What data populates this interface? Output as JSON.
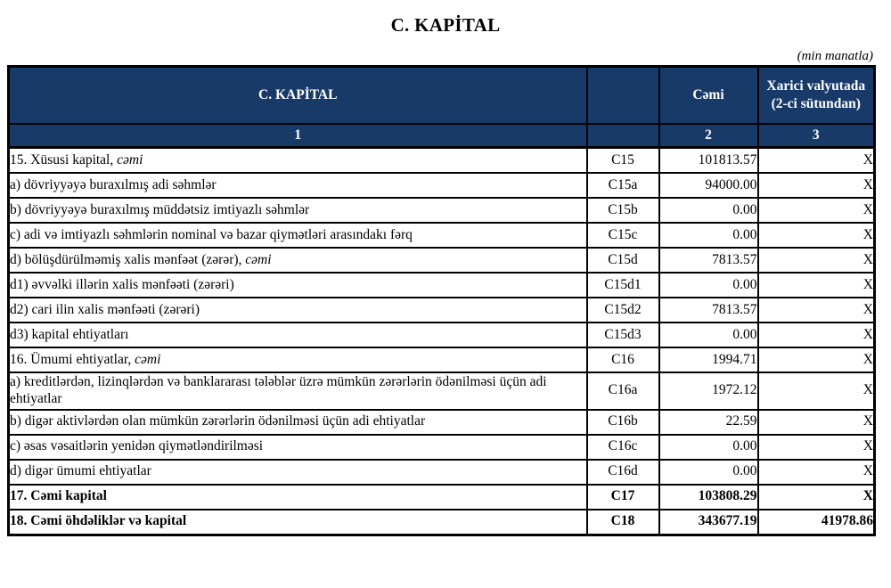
{
  "page": {
    "title": "C. KAPİTAL",
    "unit_note": "(min manatla)"
  },
  "table": {
    "header": {
      "name_col": "C. KAPİTAL",
      "code_col": "",
      "total_col": "Cəmi",
      "foreign_col": "Xarici valyutada (2-ci sütundan)"
    },
    "subheader": [
      "1",
      "",
      "2",
      "3"
    ],
    "rows": [
      {
        "label": "15. Xüsusi kapital, ",
        "label_italic": "cəmi",
        "code": "C15",
        "total": "101813.57",
        "foreign": "X",
        "bold": false,
        "raised": false
      },
      {
        "label": "a) dövriyyəyə buraxılmış adi səhmlər",
        "label_italic": "",
        "code": "C15a",
        "total": "94000.00",
        "foreign": "X",
        "bold": false,
        "raised": true
      },
      {
        "label": "b) dövriyyəyə buraxılmış müddətsiz imtiyazlı səhmlər",
        "label_italic": "",
        "code": "C15b",
        "total": "0.00",
        "foreign": "X",
        "bold": false,
        "raised": false
      },
      {
        "label": "c) adi və imtiyazlı səhmlərin nominal və bazar qiymətləri arasındakı fərq",
        "label_italic": "",
        "code": "C15c",
        "total": "0.00",
        "foreign": "X",
        "bold": false,
        "raised": false
      },
      {
        "label": "d) bölüşdürülməmiş xalis mənfəət (zərər), ",
        "label_italic": "cəmi",
        "code": "C15d",
        "total": "7813.57",
        "foreign": "X",
        "bold": false,
        "raised": true
      },
      {
        "label": "d1) əvvəlki illərin xalis mənfəəti (zərəri)",
        "label_italic": "",
        "code": "C15d1",
        "total": "0.00",
        "foreign": "X",
        "bold": false,
        "raised": false
      },
      {
        "label": "d2) cari ilin xalis mənfəəti (zərəri)",
        "label_italic": "",
        "code": "C15d2",
        "total": "7813.57",
        "foreign": "X",
        "bold": false,
        "raised": false
      },
      {
        "label": "d3) kapital ehtiyatları",
        "label_italic": "",
        "code": "C15d3",
        "total": "0.00",
        "foreign": "X",
        "bold": false,
        "raised": true
      },
      {
        "label": "16. Ümumi ehtiyatlar, ",
        "label_italic": "cəmi",
        "code": "C16",
        "total": "1994.71",
        "foreign": "X",
        "bold": false,
        "raised": false
      },
      {
        "label": "a) kreditlərdən, lizinqlərdən və banklararası  tələblər üzrə mümkün zərərlərin ödənilməsi üçün adi ehtiyatlar",
        "label_italic": "",
        "code": "C16a",
        "total": "1972.12",
        "foreign": "X",
        "bold": false,
        "raised": false
      },
      {
        "label": "b) digər aktivlərdən olan mümkün zərərlərin ödənilməsi üçün adi ehtiyatlar",
        "label_italic": "",
        "code": "C16b",
        "total": "22.59",
        "foreign": "X",
        "bold": false,
        "raised": true
      },
      {
        "label": "c) əsas vəsaitlərin yenidən qiymətləndirilməsi",
        "label_italic": "",
        "code": "C16c",
        "total": "0.00",
        "foreign": "X",
        "bold": false,
        "raised": false
      },
      {
        "label": "d) digər ümumi ehtiyatlar",
        "label_italic": "",
        "code": "C16d",
        "total": "0.00",
        "foreign": "X",
        "bold": false,
        "raised": false
      },
      {
        "label": "17. Cəmi kapital",
        "label_italic": "",
        "code": "C17",
        "total": "103808.29",
        "foreign": "X",
        "bold": true,
        "raised": true
      },
      {
        "label": "18. Cəmi öhdəliklər və kapital",
        "label_italic": "",
        "code": "C18",
        "total": "343677.19",
        "foreign": "41978.86",
        "bold": true,
        "raised": false
      }
    ],
    "colors": {
      "header_bg": "#183a69",
      "header_text": "#ffffff",
      "border": "#000000"
    }
  }
}
